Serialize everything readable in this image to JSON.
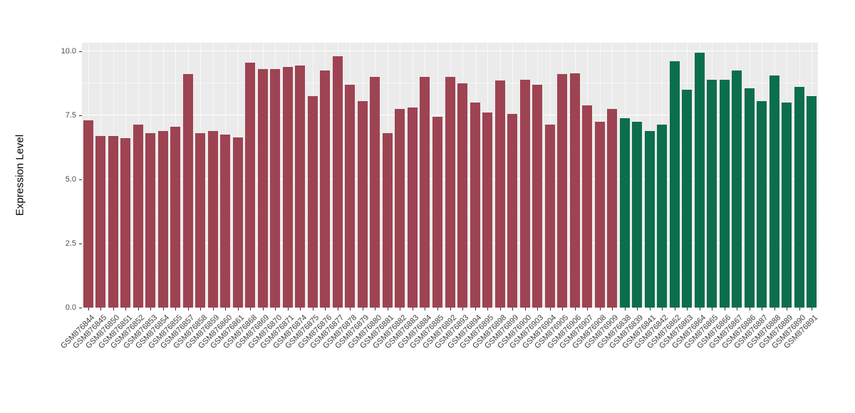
{
  "chart_data": {
    "type": "bar",
    "title": "",
    "xlabel": "",
    "ylabel": "Expression Level",
    "ylim": [
      0,
      10.3
    ],
    "ytick_labels": [
      "0.0",
      "2.5",
      "5.0",
      "7.5",
      "10.0"
    ],
    "ytick_values": [
      0,
      2.5,
      5,
      7.5,
      10
    ],
    "grid": true,
    "legend_position": "none",
    "plot_background": "#ebebeb",
    "colors": {
      "group1": "#9e4352",
      "group2": "#0b6e4d"
    },
    "categories": [
      "GSM876844",
      "GSM876845",
      "GSM876850",
      "GSM876851",
      "GSM876852",
      "GSM876853",
      "GSM876854",
      "GSM876855",
      "GSM876857",
      "GSM876858",
      "GSM876859",
      "GSM876860",
      "GSM876861",
      "GSM876868",
      "GSM876869",
      "GSM876870",
      "GSM876871",
      "GSM876874",
      "GSM876875",
      "GSM876876",
      "GSM876877",
      "GSM876878",
      "GSM876879",
      "GSM876880",
      "GSM876881",
      "GSM876882",
      "GSM876883",
      "GSM876884",
      "GSM876885",
      "GSM876892",
      "GSM876893",
      "GSM876894",
      "GSM876895",
      "GSM876898",
      "GSM876899",
      "GSM876900",
      "GSM876903",
      "GSM876904",
      "GSM876905",
      "GSM876906",
      "GSM876907",
      "GSM876908",
      "GSM876909",
      "GSM876838",
      "GSM876839",
      "GSM876841",
      "GSM876842",
      "GSM876862",
      "GSM876863",
      "GSM876864",
      "GSM876865",
      "GSM876866",
      "GSM876867",
      "GSM876886",
      "GSM876887",
      "GSM876888",
      "GSM876889",
      "GSM876890",
      "GSM876891"
    ],
    "values": [
      7.3,
      6.7,
      6.7,
      6.6,
      7.15,
      6.8,
      6.9,
      7.05,
      9.1,
      6.8,
      6.9,
      6.75,
      6.65,
      9.55,
      9.3,
      9.3,
      9.4,
      9.45,
      8.25,
      9.25,
      9.8,
      8.7,
      8.05,
      9.0,
      6.8,
      7.75,
      7.8,
      9.0,
      7.45,
      9.0,
      8.75,
      8.0,
      7.6,
      8.85,
      7.55,
      8.9,
      8.7,
      7.15,
      9.1,
      9.15,
      7.9,
      7.25,
      7.75,
      7.4,
      7.25,
      6.9,
      7.15,
      9.6,
      8.5,
      9.95,
      8.9,
      8.9,
      9.25,
      8.55,
      8.05,
      9.05,
      8.0,
      8.6,
      8.25
    ],
    "groups": [
      "group1",
      "group1",
      "group1",
      "group1",
      "group1",
      "group1",
      "group1",
      "group1",
      "group1",
      "group1",
      "group1",
      "group1",
      "group1",
      "group1",
      "group1",
      "group1",
      "group1",
      "group1",
      "group1",
      "group1",
      "group1",
      "group1",
      "group1",
      "group1",
      "group1",
      "group1",
      "group1",
      "group1",
      "group1",
      "group1",
      "group1",
      "group1",
      "group1",
      "group1",
      "group1",
      "group1",
      "group1",
      "group1",
      "group1",
      "group1",
      "group1",
      "group1",
      "group1",
      "group2",
      "group2",
      "group2",
      "group2",
      "group2",
      "group2",
      "group2",
      "group2",
      "group2",
      "group2",
      "group2",
      "group2",
      "group2",
      "group2",
      "group2",
      "group2"
    ]
  }
}
